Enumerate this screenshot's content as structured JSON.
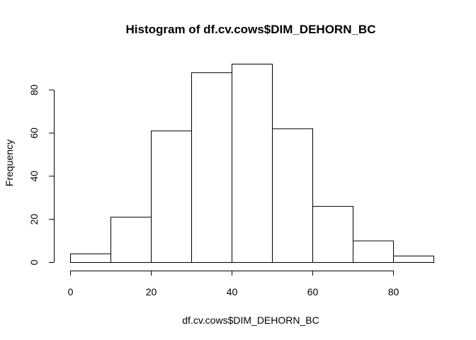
{
  "chart_data": {
    "type": "bar",
    "title": "Histogram of df.cv.cows$DIM_DEHORN_BC",
    "xlabel": "df.cv.cows$DIM_DEHORN_BC",
    "ylabel": "Frequency",
    "bin_edges": [
      0,
      10,
      20,
      30,
      40,
      50,
      60,
      70,
      80,
      90
    ],
    "values": [
      4,
      21,
      61,
      88,
      92,
      62,
      26,
      10,
      3
    ],
    "xlim": [
      0,
      90
    ],
    "ylim": [
      0,
      92
    ],
    "x_ticks": [
      0,
      20,
      40,
      60,
      80
    ],
    "y_ticks": [
      0,
      20,
      40,
      60,
      80
    ],
    "grid": false,
    "legend": "none",
    "bar_fill": "#ffffff",
    "bar_stroke": "#000000"
  }
}
